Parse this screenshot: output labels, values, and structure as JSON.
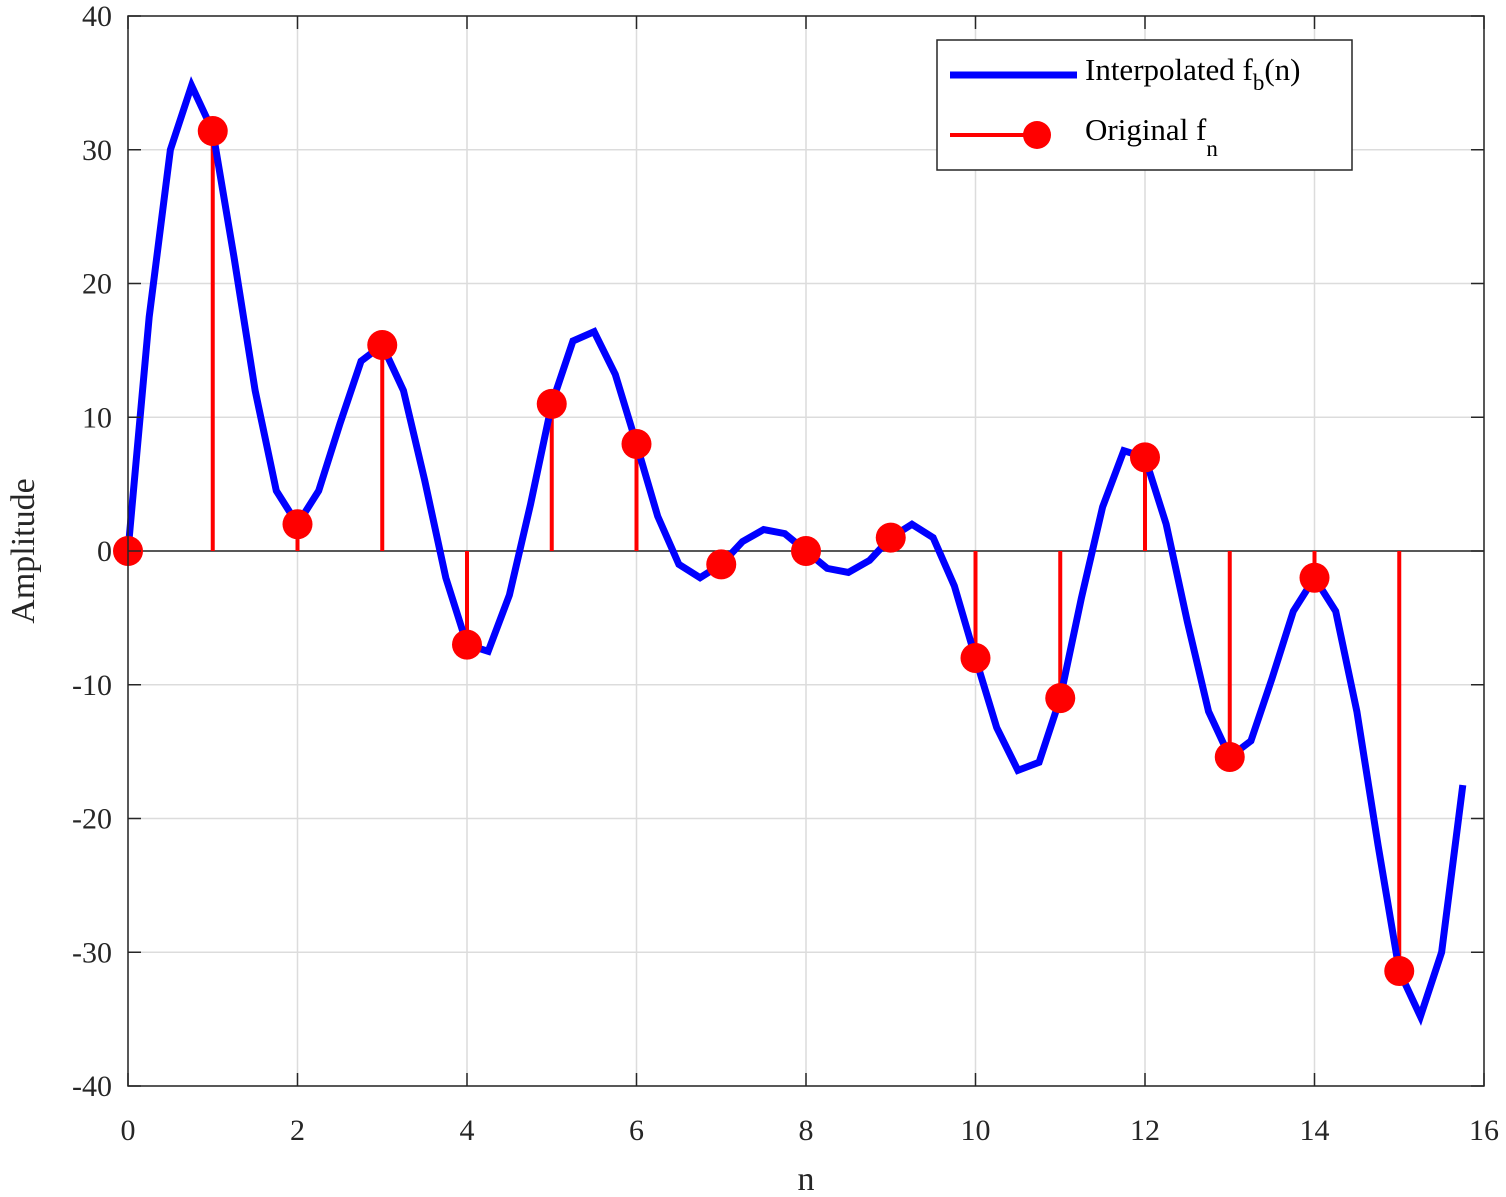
{
  "chart_data": {
    "type": "line",
    "xlabel": "n",
    "ylabel": "Amplitude",
    "xlim": [
      0,
      16
    ],
    "ylim": [
      -40,
      40
    ],
    "xticks": [
      "0",
      "2",
      "4",
      "6",
      "8",
      "10",
      "12",
      "14",
      "16"
    ],
    "yticks": [
      "40",
      "30",
      "20",
      "10",
      "0",
      "-10",
      "-20",
      "-30",
      "-40"
    ],
    "grid": true,
    "legend_position": "top-right",
    "legend": [
      {
        "text": "Interpolated f",
        "sub": "b",
        "suffix": "(n)",
        "color": "#0000ff"
      },
      {
        "text": "Original f",
        "sub": "n",
        "suffix": "",
        "color": "#ff0000"
      }
    ],
    "series": [
      {
        "name": "Interpolated fb(n)",
        "style": "line",
        "color": "#0000ff",
        "x": [
          0,
          0.25,
          0.5,
          0.75,
          1,
          1.25,
          1.5,
          1.75,
          2,
          2.25,
          2.5,
          2.75,
          3,
          3.25,
          3.5,
          3.75,
          4,
          4.25,
          4.5,
          4.75,
          5,
          5.25,
          5.5,
          5.75,
          6,
          6.25,
          6.5,
          6.75,
          7,
          7.25,
          7.5,
          7.75,
          8,
          8.25,
          8.5,
          8.75,
          9,
          9.25,
          9.5,
          9.75,
          10,
          10.25,
          10.5,
          10.75,
          11,
          11.25,
          11.5,
          11.75,
          12,
          12.25,
          12.5,
          12.75,
          13,
          13.25,
          13.5,
          13.75,
          14,
          14.25,
          14.5,
          14.75,
          15,
          15.25,
          15.5,
          15.75
        ],
        "y": [
          0,
          17.5,
          30,
          34.8,
          31.4,
          22,
          12,
          4.5,
          2,
          4.5,
          9.5,
          14.2,
          15.4,
          12,
          5.3,
          -2,
          -7,
          -7.5,
          -3.3,
          3.5,
          11,
          15.7,
          16.4,
          13.2,
          8,
          2.6,
          -1,
          -2,
          -1,
          0.7,
          1.6,
          1.3,
          0,
          -1.3,
          -1.6,
          -0.7,
          1,
          2,
          1,
          -2.6,
          -8,
          -13.2,
          -16.4,
          -15.8,
          -11,
          -3.5,
          3.3,
          7.5,
          7,
          2,
          -5.3,
          -12,
          -15.4,
          -14.2,
          -9.5,
          -4.5,
          -2,
          -4.5,
          -12,
          -22,
          -31.4,
          -34.8,
          -30,
          -17.5
        ]
      },
      {
        "name": "Original fn",
        "style": "stem",
        "color": "#ff0000",
        "x": [
          0,
          1,
          2,
          3,
          4,
          5,
          6,
          7,
          8,
          9,
          10,
          11,
          12,
          13,
          14,
          15
        ],
        "y": [
          0,
          31.4,
          2,
          15.4,
          -7,
          11,
          8,
          -1,
          0,
          1,
          -8,
          -11,
          7,
          -15.4,
          -2,
          -31.4
        ]
      }
    ]
  }
}
